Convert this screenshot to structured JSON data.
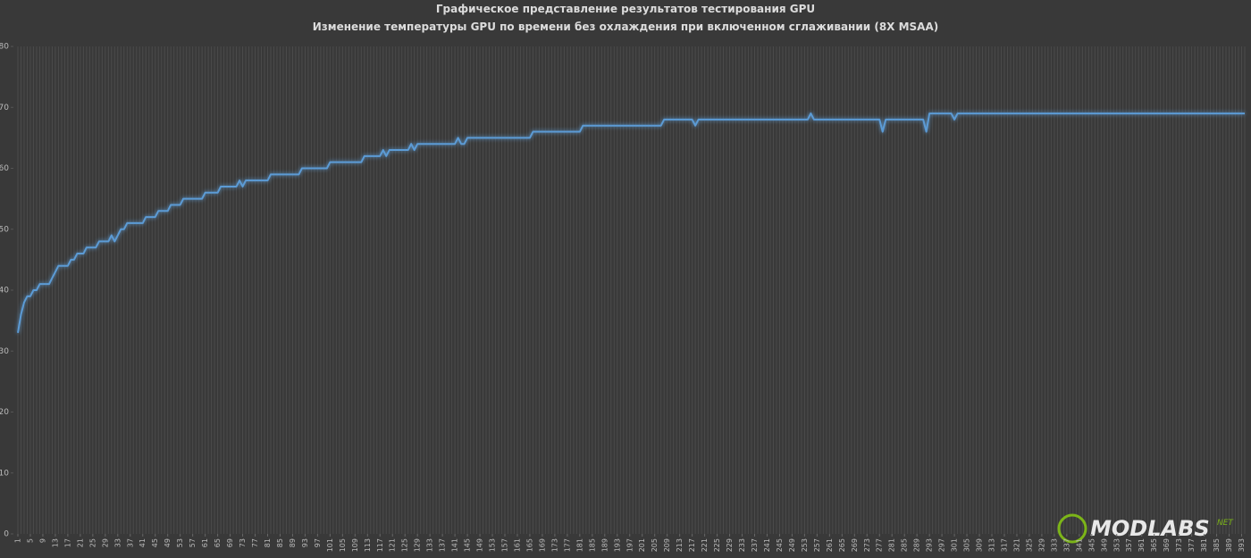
{
  "chart_data": {
    "type": "line",
    "title": "Графическое представление результатов тестирования GPU",
    "subtitle": "Изменение температуры GPU по времени без охлаждения при включенном сглаживании (8X MSAA)",
    "watermark": {
      "text": "MODLABS",
      "suffix": "NET"
    },
    "color": "#5b9bd5",
    "grid": true,
    "ylim": [
      0,
      80
    ],
    "yticks": [
      0,
      10,
      20,
      30,
      40,
      50,
      60,
      70,
      80
    ],
    "xlim": [
      1,
      394
    ],
    "xticks": [
      1,
      5,
      9,
      13,
      17,
      21,
      25,
      29,
      33,
      37,
      41,
      45,
      49,
      53,
      57,
      61,
      65,
      69,
      73,
      77,
      81,
      85,
      89,
      93,
      97,
      101,
      105,
      109,
      113,
      117,
      121,
      125,
      129,
      133,
      137,
      141,
      145,
      149,
      153,
      157,
      161,
      165,
      169,
      173,
      177,
      181,
      185,
      189,
      193,
      197,
      201,
      205,
      209,
      213,
      217,
      221,
      225,
      229,
      233,
      237,
      241,
      245,
      249,
      253,
      257,
      261,
      265,
      269,
      273,
      277,
      281,
      285,
      289,
      293,
      297,
      301,
      305,
      309,
      313,
      317,
      321,
      325,
      329,
      333,
      337,
      341,
      345,
      349,
      353,
      357,
      361,
      365,
      369,
      373,
      377,
      381,
      385,
      389,
      393
    ],
    "x": [
      1,
      2,
      3,
      4,
      5,
      6,
      7,
      8,
      9,
      10,
      11,
      12,
      13,
      14,
      15,
      16,
      17,
      18,
      19,
      20,
      21,
      22,
      23,
      24,
      25,
      26,
      27,
      28,
      29,
      30,
      31,
      32,
      33,
      34,
      35,
      36,
      37,
      38,
      39,
      40,
      41,
      42,
      43,
      44,
      45,
      46,
      47,
      48,
      49,
      50,
      51,
      52,
      53,
      54,
      55,
      56,
      57,
      58,
      59,
      60,
      61,
      62,
      63,
      64,
      65,
      66,
      67,
      68,
      69,
      70,
      71,
      72,
      73,
      74,
      75,
      76,
      77,
      78,
      79,
      80,
      81,
      82,
      83,
      84,
      85,
      86,
      87,
      88,
      89,
      90,
      91,
      92,
      93,
      94,
      95,
      96,
      97,
      98,
      99,
      100,
      101,
      102,
      103,
      104,
      105,
      106,
      107,
      108,
      109,
      110,
      111,
      112,
      113,
      114,
      115,
      116,
      117,
      118,
      119,
      120,
      121,
      122,
      123,
      124,
      125,
      126,
      127,
      128,
      129,
      130,
      131,
      132,
      133,
      134,
      135,
      136,
      137,
      138,
      139,
      140,
      141,
      142,
      143,
      144,
      145,
      146,
      147,
      148,
      149,
      150,
      151,
      152,
      153,
      154,
      155,
      156,
      157,
      158,
      159,
      160,
      161,
      162,
      163,
      164,
      165,
      166,
      167,
      168,
      169,
      170,
      171,
      172,
      173,
      174,
      175,
      176,
      177,
      178,
      179,
      180,
      181,
      182,
      183,
      184,
      185,
      186,
      187,
      188,
      189,
      190,
      191,
      192,
      193,
      194,
      195,
      196,
      197,
      198,
      199,
      200,
      201,
      202,
      203,
      204,
      205,
      206,
      207,
      208,
      209,
      210,
      211,
      212,
      213,
      214,
      215,
      216,
      217,
      218,
      219,
      220,
      221,
      222,
      223,
      224,
      225,
      226,
      227,
      228,
      229,
      230,
      231,
      232,
      233,
      234,
      235,
      236,
      237,
      238,
      239,
      240,
      241,
      242,
      243,
      244,
      245,
      246,
      247,
      248,
      249,
      250,
      251,
      252,
      253,
      254,
      255,
      256,
      257,
      258,
      259,
      260,
      261,
      262,
      263,
      264,
      265,
      266,
      267,
      268,
      269,
      270,
      271,
      272,
      273,
      274,
      275,
      276,
      277,
      278,
      279,
      280,
      281,
      282,
      283,
      284,
      285,
      286,
      287,
      288,
      289,
      290,
      291,
      292,
      293,
      294,
      295,
      296,
      297,
      298,
      299,
      300,
      301,
      302,
      303,
      304,
      305,
      306,
      307,
      308,
      309,
      310,
      311,
      312,
      313,
      314,
      315,
      316,
      317,
      318,
      319,
      320,
      321,
      322,
      323,
      324,
      325,
      326,
      327,
      328,
      329,
      330,
      331,
      332,
      333,
      334,
      335,
      336,
      337,
      338,
      339,
      340,
      341,
      342,
      343,
      344,
      345,
      346,
      347,
      348,
      349,
      350,
      351,
      352,
      353,
      354,
      355,
      356,
      357,
      358,
      359,
      360,
      361,
      362,
      363,
      364,
      365,
      366,
      367,
      368,
      369,
      370,
      371,
      372,
      373,
      374,
      375,
      376,
      377,
      378,
      379,
      380,
      381,
      382,
      383,
      384,
      385,
      386,
      387,
      388,
      389,
      390,
      391,
      392,
      393,
      394
    ],
    "values": [
      33,
      36,
      38,
      39,
      39,
      40,
      40,
      41,
      41,
      41,
      41,
      42,
      43,
      44,
      44,
      44,
      44,
      45,
      45,
      46,
      46,
      46,
      47,
      47,
      47,
      47,
      48,
      48,
      48,
      48,
      49,
      48,
      49,
      50,
      50,
      51,
      51,
      51,
      51,
      51,
      51,
      52,
      52,
      52,
      52,
      53,
      53,
      53,
      53,
      54,
      54,
      54,
      54,
      55,
      55,
      55,
      55,
      55,
      55,
      55,
      56,
      56,
      56,
      56,
      56,
      57,
      57,
      57,
      57,
      57,
      57,
      58,
      57,
      58,
      58,
      58,
      58,
      58,
      58,
      58,
      58,
      59,
      59,
      59,
      59,
      59,
      59,
      59,
      59,
      59,
      59,
      60,
      60,
      60,
      60,
      60,
      60,
      60,
      60,
      60,
      61,
      61,
      61,
      61,
      61,
      61,
      61,
      61,
      61,
      61,
      61,
      62,
      62,
      62,
      62,
      62,
      62,
      63,
      62,
      63,
      63,
      63,
      63,
      63,
      63,
      63,
      64,
      63,
      64,
      64,
      64,
      64,
      64,
      64,
      64,
      64,
      64,
      64,
      64,
      64,
      64,
      65,
      64,
      64,
      65,
      65,
      65,
      65,
      65,
      65,
      65,
      65,
      65,
      65,
      65,
      65,
      65,
      65,
      65,
      65,
      65,
      65,
      65,
      65,
      65,
      66,
      66,
      66,
      66,
      66,
      66,
      66,
      66,
      66,
      66,
      66,
      66,
      66,
      66,
      66,
      66,
      67,
      67,
      67,
      67,
      67,
      67,
      67,
      67,
      67,
      67,
      67,
      67,
      67,
      67,
      67,
      67,
      67,
      67,
      67,
      67,
      67,
      67,
      67,
      67,
      67,
      67,
      68,
      68,
      68,
      68,
      68,
      68,
      68,
      68,
      68,
      68,
      67,
      68,
      68,
      68,
      68,
      68,
      68,
      68,
      68,
      68,
      68,
      68,
      68,
      68,
      68,
      68,
      68,
      68,
      68,
      68,
      68,
      68,
      68,
      68,
      68,
      68,
      68,
      68,
      68,
      68,
      68,
      68,
      68,
      68,
      68,
      68,
      68,
      69,
      68,
      68,
      68,
      68,
      68,
      68,
      68,
      68,
      68,
      68,
      68,
      68,
      68,
      68,
      68,
      68,
      68,
      68,
      68,
      68,
      68,
      68,
      66,
      68,
      68,
      68,
      68,
      68,
      68,
      68,
      68,
      68,
      68,
      68,
      68,
      68,
      66,
      69,
      69,
      69,
      69,
      69,
      69,
      69,
      69,
      68,
      69,
      69,
      69,
      69,
      69,
      69,
      69,
      69,
      69,
      69,
      69,
      69,
      69,
      69,
      69,
      69,
      69,
      69,
      69,
      69,
      69,
      69,
      69,
      69,
      69,
      69,
      69,
      69,
      69,
      69,
      69,
      69,
      69,
      69,
      69,
      69,
      69,
      69,
      69,
      69,
      69,
      69,
      69,
      69,
      69,
      69,
      69,
      69,
      69,
      69,
      69,
      69,
      69,
      69,
      69,
      69,
      69,
      69,
      69,
      69,
      69,
      69,
      69,
      69,
      69,
      69,
      69,
      69,
      69,
      69,
      69,
      69,
      69,
      69,
      69,
      69,
      69,
      69,
      69,
      69,
      69,
      69,
      69,
      69,
      69,
      69,
      69,
      69,
      69,
      69,
      69,
      69,
      69
    ]
  }
}
